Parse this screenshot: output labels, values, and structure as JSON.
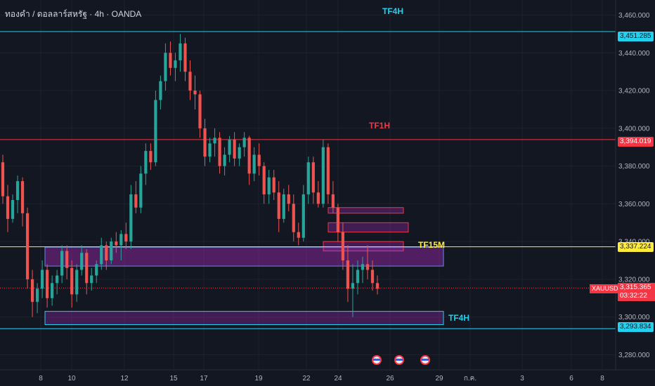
{
  "header": {
    "symbol_title": "ทองคำ / ดอลลาร์สหรัฐ · 4h · OANDA"
  },
  "chart_data": {
    "type": "candlestick",
    "title": "ทองคำ / ดอลลาร์สหรัฐ · 4h · OANDA",
    "ylim": [
      3272,
      3468
    ],
    "y_ticks": [
      "3,460.000",
      "3,440.000",
      "3,420.000",
      "3,400.000",
      "3,380.000",
      "3,360.000",
      "3,340.000",
      "3,320.000",
      "3,300.000",
      "3,280.000"
    ],
    "x_ticks": [
      "8",
      "10",
      "12",
      "15",
      "17",
      "19",
      "22",
      "24",
      "26",
      "29",
      "ก.ค.",
      "3",
      "6",
      "8"
    ],
    "grid": true,
    "levels": [
      {
        "name": "TF4H",
        "price": 3451.285,
        "label": "3,451.285",
        "color": "#22d1ee"
      },
      {
        "name": "TF1H",
        "price": 3394.019,
        "label": "3,394.019",
        "color": "#f23645"
      },
      {
        "name": "TF15M",
        "price": 3337.224,
        "label": "3,337.224",
        "color": "#ffeb3b"
      },
      {
        "name": "TF4H",
        "price": 3293.834,
        "label": "3,293.834",
        "color": "#22d1ee"
      }
    ],
    "annotations": [
      "TF4H",
      "TF1H",
      "TF15M",
      "TF4H"
    ],
    "zones": [
      {
        "low": 3296,
        "high": 3303,
        "color": "#22d1ee"
      },
      {
        "low": 3327,
        "high": 3337,
        "color": "#5b8def"
      },
      {
        "low": 3335,
        "high": 3340,
        "color": "#f23645"
      },
      {
        "low": 3345,
        "high": 3350,
        "color": "#f23645"
      },
      {
        "low": 3355,
        "high": 3358,
        "color": "#f23645"
      }
    ],
    "current": {
      "symbol": "XAUUSD",
      "price": 3315.365,
      "label": "3,315.365",
      "countdown": "03:32:22",
      "color": "#f23645"
    },
    "ohlc": [
      [
        3382,
        3386,
        3360,
        3364
      ],
      [
        3364,
        3370,
        3345,
        3352
      ],
      [
        3352,
        3365,
        3350,
        3362
      ],
      [
        3362,
        3375,
        3355,
        3372
      ],
      [
        3372,
        3374,
        3348,
        3355
      ],
      [
        3355,
        3358,
        3315,
        3320
      ],
      [
        3320,
        3325,
        3300,
        3308
      ],
      [
        3308,
        3318,
        3302,
        3315
      ],
      [
        3315,
        3330,
        3310,
        3325
      ],
      [
        3325,
        3328,
        3305,
        3310
      ],
      [
        3310,
        3322,
        3306,
        3318
      ],
      [
        3318,
        3325,
        3312,
        3322
      ],
      [
        3322,
        3338,
        3318,
        3335
      ],
      [
        3335,
        3338,
        3320,
        3326
      ],
      [
        3326,
        3330,
        3305,
        3312
      ],
      [
        3312,
        3328,
        3308,
        3325
      ],
      [
        3325,
        3338,
        3322,
        3334
      ],
      [
        3334,
        3336,
        3312,
        3318
      ],
      [
        3318,
        3326,
        3314,
        3322
      ],
      [
        3322,
        3330,
        3318,
        3328
      ],
      [
        3328,
        3342,
        3325,
        3338
      ],
      [
        3338,
        3340,
        3325,
        3330
      ],
      [
        3330,
        3342,
        3328,
        3340
      ],
      [
        3340,
        3345,
        3334,
        3338
      ],
      [
        3338,
        3346,
        3330,
        3344
      ],
      [
        3344,
        3350,
        3336,
        3340
      ],
      [
        3340,
        3370,
        3336,
        3365
      ],
      [
        3365,
        3372,
        3355,
        3358
      ],
      [
        3358,
        3380,
        3355,
        3376
      ],
      [
        3376,
        3392,
        3370,
        3388
      ],
      [
        3388,
        3392,
        3378,
        3382
      ],
      [
        3382,
        3420,
        3380,
        3415
      ],
      [
        3415,
        3428,
        3410,
        3425
      ],
      [
        3425,
        3445,
        3420,
        3440
      ],
      [
        3440,
        3446,
        3428,
        3432
      ],
      [
        3432,
        3440,
        3425,
        3436
      ],
      [
        3436,
        3450,
        3430,
        3445
      ],
      [
        3445,
        3448,
        3425,
        3430
      ],
      [
        3430,
        3436,
        3415,
        3420
      ],
      [
        3420,
        3428,
        3410,
        3418
      ],
      [
        3418,
        3420,
        3395,
        3400
      ],
      [
        3400,
        3405,
        3380,
        3385
      ],
      [
        3385,
        3395,
        3382,
        3392
      ],
      [
        3392,
        3400,
        3385,
        3395
      ],
      [
        3395,
        3398,
        3376,
        3380
      ],
      [
        3380,
        3390,
        3375,
        3386
      ],
      [
        3386,
        3396,
        3382,
        3394
      ],
      [
        3394,
        3398,
        3380,
        3384
      ],
      [
        3384,
        3392,
        3380,
        3390
      ],
      [
        3390,
        3398,
        3385,
        3395
      ],
      [
        3395,
        3396,
        3370,
        3376
      ],
      [
        3376,
        3390,
        3372,
        3386
      ],
      [
        3386,
        3392,
        3375,
        3380
      ],
      [
        3380,
        3382,
        3360,
        3365
      ],
      [
        3365,
        3378,
        3360,
        3374
      ],
      [
        3374,
        3378,
        3362,
        3366
      ],
      [
        3366,
        3372,
        3345,
        3352
      ],
      [
        3352,
        3368,
        3350,
        3365
      ],
      [
        3365,
        3370,
        3356,
        3360
      ],
      [
        3360,
        3365,
        3340,
        3345
      ],
      [
        3345,
        3350,
        3338,
        3342
      ],
      [
        3342,
        3370,
        3340,
        3365
      ],
      [
        3365,
        3385,
        3360,
        3382
      ],
      [
        3382,
        3385,
        3360,
        3366
      ],
      [
        3366,
        3372,
        3358,
        3360
      ],
      [
        3360,
        3394,
        3358,
        3390
      ],
      [
        3390,
        3392,
        3360,
        3365
      ],
      [
        3365,
        3372,
        3355,
        3358
      ],
      [
        3358,
        3360,
        3340,
        3345
      ],
      [
        3345,
        3350,
        3325,
        3330
      ],
      [
        3330,
        3338,
        3308,
        3315
      ],
      [
        3315,
        3328,
        3300,
        3318
      ],
      [
        3318,
        3330,
        3312,
        3325
      ],
      [
        3325,
        3332,
        3318,
        3328
      ],
      [
        3328,
        3338,
        3320,
        3325
      ],
      [
        3325,
        3330,
        3314,
        3318
      ],
      [
        3318,
        3322,
        3312,
        3315
      ]
    ]
  }
}
